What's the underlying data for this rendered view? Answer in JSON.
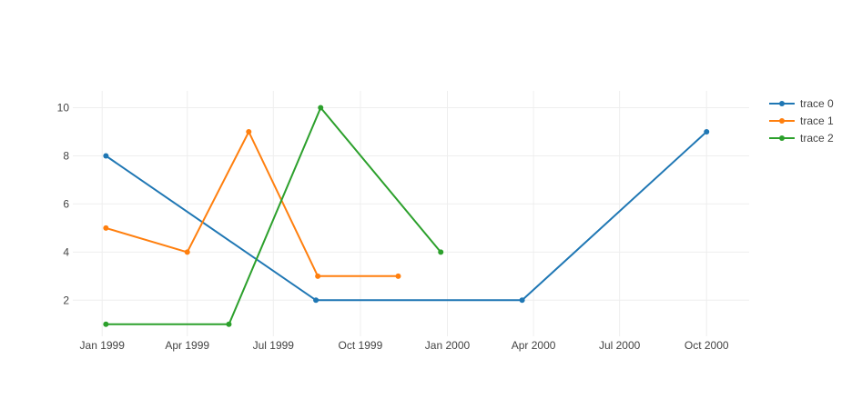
{
  "chart_data": {
    "type": "line",
    "title": "",
    "xlabel": "",
    "ylabel": "",
    "grid": true,
    "legend_position": "top-right",
    "x_axis": {
      "type": "date",
      "range": [
        "1998-12-01",
        "2000-11-15"
      ],
      "ticks": [
        {
          "date": "1999-01-01",
          "label": "Jan 1999"
        },
        {
          "date": "1999-04-01",
          "label": "Apr 1999"
        },
        {
          "date": "1999-07-01",
          "label": "Jul 1999"
        },
        {
          "date": "1999-10-01",
          "label": "Oct 1999"
        },
        {
          "date": "2000-01-01",
          "label": "Jan 2000"
        },
        {
          "date": "2000-04-01",
          "label": "Apr 2000"
        },
        {
          "date": "2000-07-01",
          "label": "Jul 2000"
        },
        {
          "date": "2000-10-01",
          "label": "Oct 2000"
        }
      ]
    },
    "y_axis": {
      "range": [
        0.5,
        10.7
      ],
      "ticks": [
        2,
        4,
        6,
        8,
        10
      ]
    },
    "series": [
      {
        "name": "trace 0",
        "color": "#1f77b4",
        "x": [
          "1999-01-05",
          "1999-08-15",
          "2000-03-20",
          "2000-10-01"
        ],
        "y": [
          8,
          2,
          2,
          9
        ]
      },
      {
        "name": "trace 1",
        "color": "#ff7f0e",
        "x": [
          "1999-01-05",
          "1999-04-01",
          "1999-06-05",
          "1999-08-17",
          "1999-11-10"
        ],
        "y": [
          5,
          4,
          9,
          3,
          3
        ]
      },
      {
        "name": "trace 2",
        "color": "#2ca02c",
        "x": [
          "1999-01-05",
          "1999-05-15",
          "1999-08-20",
          "1999-12-25"
        ],
        "y": [
          1,
          1,
          10,
          4
        ]
      }
    ]
  }
}
